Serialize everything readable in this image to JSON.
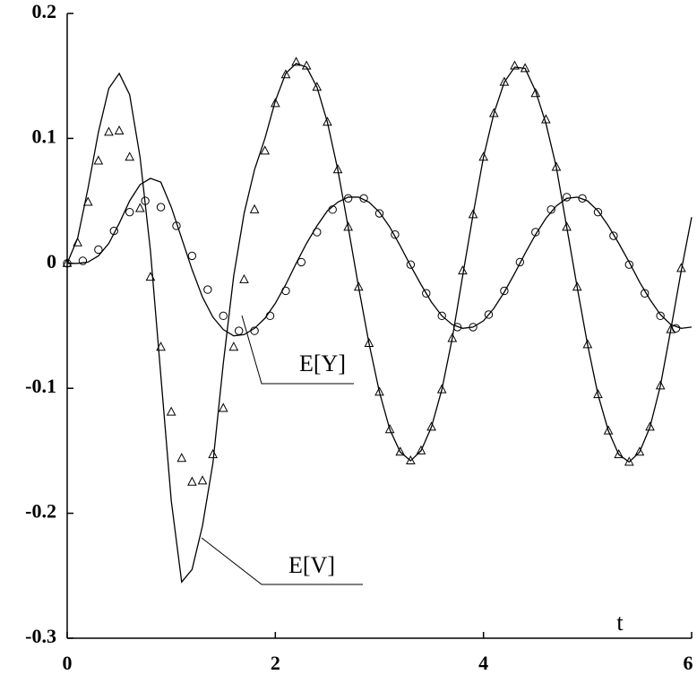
{
  "chart_data": {
    "type": "line",
    "x_label": "t",
    "xlim": [
      0,
      6
    ],
    "xticks": [
      0,
      2,
      4,
      6
    ],
    "ylim": [
      -0.3,
      0.2
    ],
    "yticks": [
      0.2,
      0.1,
      0,
      -0.1,
      -0.2,
      -0.3
    ],
    "series": [
      {
        "name": "E[V]",
        "color": "#000000",
        "marker": "none",
        "x": [
          0,
          0.1,
          0.2,
          0.3,
          0.4,
          0.5,
          0.6,
          0.7,
          0.8,
          0.9,
          1.0,
          1.1,
          1.2,
          1.3,
          1.4,
          1.5,
          1.6,
          1.7,
          1.8,
          1.9,
          2.0,
          2.1,
          2.2,
          2.3,
          2.4,
          2.5,
          2.6,
          2.7,
          2.8,
          2.9,
          3.0,
          3.1,
          3.2,
          3.3,
          3.4,
          3.5,
          3.6,
          3.7,
          3.8,
          3.9,
          4.0,
          4.1,
          4.2,
          4.3,
          4.4,
          4.5,
          4.6,
          4.7,
          4.8,
          4.9,
          5.0,
          5.1,
          5.2,
          5.3,
          5.4,
          5.5,
          5.6,
          5.7,
          5.8,
          5.9,
          6.0
        ],
        "values": [
          0,
          0.02,
          0.06,
          0.105,
          0.14,
          0.152,
          0.135,
          0.085,
          0.01,
          -0.09,
          -0.19,
          -0.255,
          -0.245,
          -0.21,
          -0.16,
          -0.08,
          -0.01,
          0.04,
          0.075,
          0.1,
          0.13,
          0.152,
          0.16,
          0.157,
          0.141,
          0.113,
          0.075,
          0.029,
          -0.019,
          -0.064,
          -0.103,
          -0.133,
          -0.151,
          -0.158,
          -0.15,
          -0.131,
          -0.101,
          -0.06,
          -0.01,
          0.039,
          0.085,
          0.12,
          0.145,
          0.157,
          0.156,
          0.138,
          0.112,
          0.077,
          0.029,
          -0.019,
          -0.065,
          -0.105,
          -0.134,
          -0.153,
          -0.159,
          -0.151,
          -0.131,
          -0.098,
          -0.053,
          -0.006,
          0.037
        ]
      },
      {
        "name": "E[Y]",
        "color": "#000000",
        "marker": "none",
        "x": [
          0,
          0.1,
          0.2,
          0.3,
          0.4,
          0.5,
          0.6,
          0.7,
          0.8,
          0.9,
          1.0,
          1.1,
          1.2,
          1.3,
          1.4,
          1.5,
          1.6,
          1.7,
          1.8,
          1.9,
          2.0,
          2.1,
          2.2,
          2.3,
          2.4,
          2.5,
          2.6,
          2.7,
          2.8,
          2.9,
          3.0,
          3.1,
          3.2,
          3.3,
          3.4,
          3.5,
          3.6,
          3.7,
          3.8,
          3.9,
          4.0,
          4.1,
          4.2,
          4.3,
          4.4,
          4.5,
          4.6,
          4.7,
          4.8,
          4.9,
          5.0,
          5.1,
          5.2,
          5.3,
          5.4,
          5.5,
          5.6,
          5.7,
          5.8,
          5.9,
          6.0
        ],
        "values": [
          0,
          0,
          0.001,
          0.006,
          0.016,
          0.032,
          0.05,
          0.063,
          0.068,
          0.065,
          0.045,
          0.02,
          -0.005,
          -0.027,
          -0.043,
          -0.053,
          -0.058,
          -0.057,
          -0.052,
          -0.044,
          -0.032,
          -0.017,
          0,
          0.016,
          0.03,
          0.042,
          0.049,
          0.053,
          0.053,
          0.049,
          0.041,
          0.029,
          0.014,
          -0.002,
          -0.017,
          -0.031,
          -0.042,
          -0.049,
          -0.052,
          -0.051,
          -0.046,
          -0.036,
          -0.023,
          -0.008,
          0.008,
          0.023,
          0.036,
          0.046,
          0.052,
          0.053,
          0.05,
          0.042,
          0.03,
          0.016,
          0.001,
          -0.015,
          -0.029,
          -0.041,
          -0.049,
          -0.052,
          -0.051
        ]
      },
      {
        "color": "#000000",
        "marker": "triangle",
        "x": [
          0,
          0.1,
          0.2,
          0.3,
          0.4,
          0.5,
          0.6,
          0.7,
          0.8,
          0.9,
          1.0,
          1.1,
          1.2,
          1.3,
          1.4,
          1.5,
          1.6,
          1.7,
          1.8,
          1.9,
          2.0,
          2.1,
          2.2,
          2.3,
          2.4,
          2.5,
          2.6,
          2.7,
          2.8,
          2.9,
          3.0,
          3.1,
          3.2,
          3.3,
          3.4,
          3.5,
          3.6,
          3.7,
          3.8,
          3.9,
          4.0,
          4.1,
          4.2,
          4.3,
          4.4,
          4.5,
          4.6,
          4.7,
          4.8,
          4.9,
          5.0,
          5.1,
          5.2,
          5.3,
          5.4,
          5.5,
          5.6,
          5.7,
          5.8,
          5.9
        ],
        "values": [
          0,
          0.0165,
          0.049,
          0.082,
          0.105,
          0.106,
          0.085,
          0.044,
          -0.011,
          -0.067,
          -0.119,
          -0.156,
          -0.175,
          -0.174,
          -0.153,
          -0.116,
          -0.067,
          -0.013,
          0.043,
          0.09,
          0.128,
          0.151,
          0.161,
          0.158,
          0.141,
          0.113,
          0.075,
          0.029,
          -0.019,
          -0.064,
          -0.103,
          -0.133,
          -0.151,
          -0.158,
          -0.15,
          -0.131,
          -0.101,
          -0.06,
          -0.006,
          0.039,
          0.085,
          0.12,
          0.145,
          0.158,
          0.156,
          0.136,
          0.115,
          0.077,
          0.029,
          -0.019,
          -0.065,
          -0.105,
          -0.134,
          -0.153,
          -0.159,
          -0.151,
          -0.131,
          -0.098,
          -0.053,
          -0.004
        ]
      },
      {
        "color": "#000000",
        "marker": "circle",
        "x": [
          0,
          0.15,
          0.3,
          0.45,
          0.6,
          0.75,
          0.9,
          1.05,
          1.2,
          1.35,
          1.5,
          1.65,
          1.8,
          1.95,
          2.1,
          2.25,
          2.4,
          2.55,
          2.7,
          2.85,
          3.0,
          3.15,
          3.3,
          3.45,
          3.6,
          3.75,
          3.9,
          4.05,
          4.2,
          4.35,
          4.5,
          4.65,
          4.8,
          4.95,
          5.1,
          5.25,
          5.4,
          5.55,
          5.7,
          5.85
        ],
        "values": [
          0,
          0.002,
          0.011,
          0.026,
          0.041,
          0.05,
          0.045,
          0.03,
          0.006,
          -0.021,
          -0.042,
          -0.054,
          -0.054,
          -0.042,
          -0.022,
          0.001,
          0.025,
          0.043,
          0.052,
          0.052,
          0.04,
          0.023,
          -0.001,
          -0.024,
          -0.042,
          -0.051,
          -0.051,
          -0.041,
          -0.022,
          0.001,
          0.025,
          0.043,
          0.053,
          0.052,
          0.041,
          0.022,
          -0.001,
          -0.024,
          -0.042,
          -0.052
        ]
      }
    ]
  }
}
